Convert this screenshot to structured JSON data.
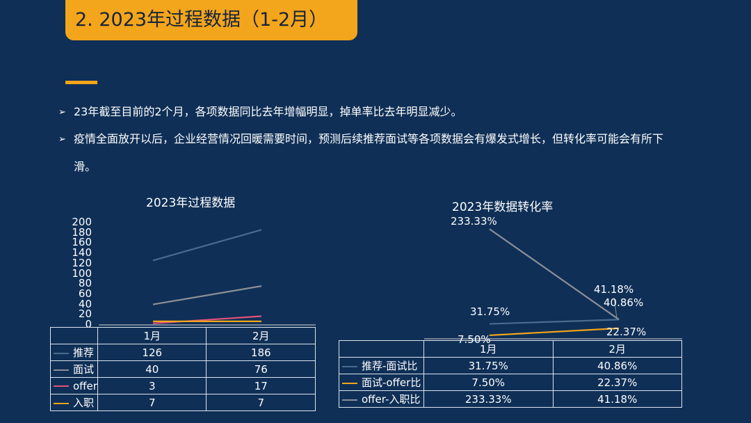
{
  "slide": {
    "title": "2. 2023年过程数据（1-2月）",
    "bullets": [
      {
        "mark": "➢",
        "text": "23年截至目前的2个月，各项数据同比去年增幅明显，掉单率比去年明显减少。"
      },
      {
        "mark": "➢",
        "text": "疫情全面放开以后，企业经营情况回暖需要时间，预测后续推荐面试等各项数据会有爆发式增长，但转化率可能会有所下滑。"
      }
    ],
    "accent_color": "#f3a51b",
    "background_color": "#0f2f56"
  },
  "chart_data": [
    {
      "type": "line",
      "title": "2023年过程数据",
      "categories": [
        "1月",
        "2月"
      ],
      "ylim": [
        0,
        200
      ],
      "yticks": [
        "0",
        "20",
        "40",
        "60",
        "80",
        "100",
        "120",
        "140",
        "160",
        "180",
        "200"
      ],
      "legend": "data-table",
      "grid": false,
      "series": [
        {
          "name": "推荐",
          "values": [
            126,
            186
          ],
          "display": [
            "126",
            "186"
          ],
          "color": "#4a6c8f"
        },
        {
          "name": "面试",
          "values": [
            40,
            76
          ],
          "display": [
            "40",
            "76"
          ],
          "color": "#8c9096"
        },
        {
          "name": "offer",
          "values": [
            3,
            17
          ],
          "display": [
            "3",
            "17"
          ],
          "color": "#e0527a"
        },
        {
          "name": "入职",
          "values": [
            7,
            7
          ],
          "display": [
            "7",
            "7"
          ],
          "color": "#f3a51b"
        }
      ]
    },
    {
      "type": "line",
      "title": "2023年数据转化率",
      "categories": [
        "1月",
        "2月"
      ],
      "ylim": [
        0,
        250
      ],
      "legend": "data-table",
      "grid": false,
      "series": [
        {
          "name": "推荐-面试比",
          "values": [
            31.75,
            40.86
          ],
          "display": [
            "31.75%",
            "40.86%"
          ],
          "color": "#4a6c8f"
        },
        {
          "name": "面试-offer比",
          "values": [
            7.5,
            22.37
          ],
          "display": [
            "7.50%",
            "22.37%"
          ],
          "color": "#f3a51b"
        },
        {
          "name": "offer-入职比",
          "values": [
            233.33,
            41.18
          ],
          "display": [
            "233.33%",
            "41.18%"
          ],
          "color": "#8c9096"
        }
      ]
    }
  ]
}
